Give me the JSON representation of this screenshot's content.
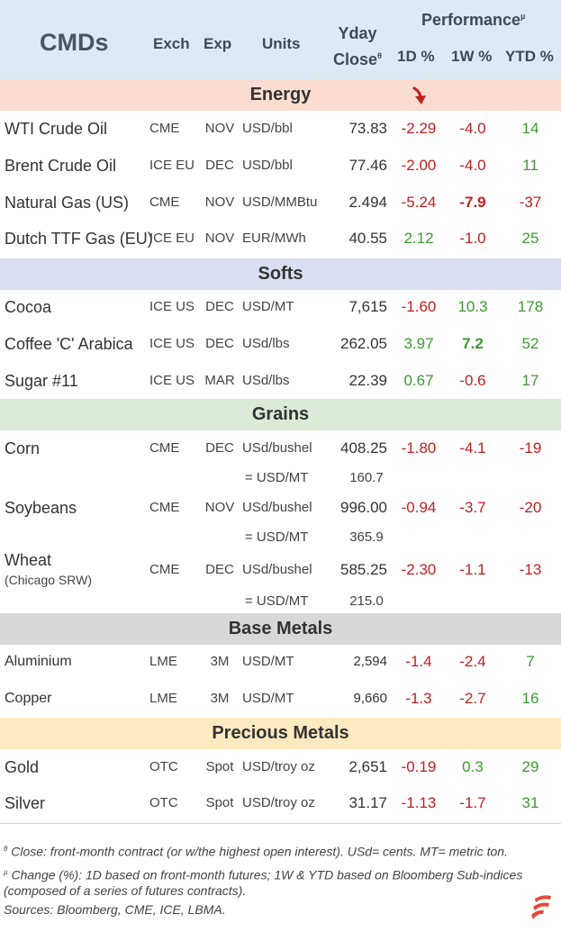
{
  "header": {
    "title": "CMDs",
    "exch": "Exch",
    "exp": "Exp",
    "units": "Units",
    "yday_line1": "Yday",
    "yday_line2": "Close",
    "yday_mark": "θ",
    "performance": "Performance",
    "performance_mark": "µ",
    "d1": "1D %",
    "w1": "1W %",
    "ytd": "YTD %"
  },
  "sections": {
    "energy": "Energy",
    "softs": "Softs",
    "grains": "Grains",
    "base": "Base Metals",
    "precious": "Precious Metals"
  },
  "rows": {
    "wti": {
      "name": "WTI Crude Oil",
      "exch": "CME",
      "exp": "NOV",
      "units": "USD/bbl",
      "close": "73.83",
      "d1": "-2.29",
      "w1": "-4.0",
      "ytd": "14"
    },
    "brent": {
      "name": "Brent Crude Oil",
      "exch": "ICE EU",
      "exp": "DEC",
      "units": "USD/bbl",
      "close": "77.46",
      "d1": "-2.00",
      "w1": "-4.0",
      "ytd": "11"
    },
    "natgas": {
      "name": "Natural Gas (US)",
      "exch": "CME",
      "exp": "NOV",
      "units": "USD/MMBtu",
      "close": "2.494",
      "d1": "-5.24",
      "w1": "-7.9",
      "ytd": "-37"
    },
    "ttf": {
      "name": "Dutch TTF Gas (EU)",
      "exch": "ICE EU",
      "exp": "NOV",
      "units": "EUR/MWh",
      "close": "40.55",
      "d1": "2.12",
      "w1": "-1.0",
      "ytd": "25"
    },
    "cocoa": {
      "name": "Cocoa",
      "exch": "ICE US",
      "exp": "DEC",
      "units": "USD/MT",
      "close": "7,615",
      "d1": "-1.60",
      "w1": "10.3",
      "ytd": "178"
    },
    "coffee": {
      "name": "Coffee 'C' Arabica",
      "exch": "ICE US",
      "exp": "DEC",
      "units": "USd/lbs",
      "close": "262.05",
      "d1": "3.97",
      "w1": "7.2",
      "ytd": "52"
    },
    "sugar": {
      "name": "Sugar #11",
      "exch": "ICE US",
      "exp": "MAR",
      "units": "USd/lbs",
      "close": "22.39",
      "d1": "0.67",
      "w1": "-0.6",
      "ytd": "17"
    },
    "corn": {
      "name": "Corn",
      "exch": "CME",
      "exp": "DEC",
      "units": "USd/bushel",
      "close": "408.25",
      "d1": "-1.80",
      "w1": "-4.1",
      "ytd": "-19",
      "sub_units": "= USD/MT",
      "sub_close": "160.7"
    },
    "soy": {
      "name": "Soybeans",
      "exch": "CME",
      "exp": "NOV",
      "units": "USd/bushel",
      "close": "996.00",
      "d1": "-0.94",
      "w1": "-3.7",
      "ytd": "-20",
      "sub_units": "= USD/MT",
      "sub_close": "365.9"
    },
    "wheat": {
      "name": "Wheat",
      "subname": "(Chicago SRW)",
      "exch": "CME",
      "exp": "DEC",
      "units": "USd/bushel",
      "close": "585.25",
      "d1": "-2.30",
      "w1": "-1.1",
      "ytd": "-13",
      "sub_units": "= USD/MT",
      "sub_close": "215.0"
    },
    "alu": {
      "name": "Aluminium",
      "exch": "LME",
      "exp": "3M",
      "units": "USD/MT",
      "close": "2,594",
      "d1": "-1.4",
      "w1": "-2.4",
      "ytd": "7"
    },
    "copper": {
      "name": "Copper",
      "exch": "LME",
      "exp": "3M",
      "units": "USD/MT",
      "close": "9,660",
      "d1": "-1.3",
      "w1": "-2.7",
      "ytd": "16"
    },
    "gold": {
      "name": "Gold",
      "exch": "OTC",
      "exp": "Spot",
      "units": "USD/troy oz",
      "close": "2,651",
      "d1": "-0.19",
      "w1": "0.3",
      "ytd": "29"
    },
    "silver": {
      "name": "Silver",
      "exch": "OTC",
      "exp": "Spot",
      "units": "USD/troy oz",
      "close": "31.17",
      "d1": "-1.13",
      "w1": "-1.7",
      "ytd": "31"
    }
  },
  "notes": {
    "mark1": "θ",
    "line1": " Close: front-month contract (or w/the highest open interest). USd= cents. MT= metric ton.",
    "mark2": "µ",
    "line2": " Change (%): 1D based on front-month futures; 1W & YTD based on Bloomberg Sub-indices",
    "line3": "(composed of a series of futures contracts).",
    "line4": "Sources: Bloomberg, CME, ICE, LBMA."
  },
  "colors": {
    "negative": "#c0201e",
    "positive": "#3b9a2e",
    "logo": "#e8483a"
  },
  "icons": {
    "arrow": "down-arrow-icon",
    "logo": "brand-logo-icon"
  }
}
